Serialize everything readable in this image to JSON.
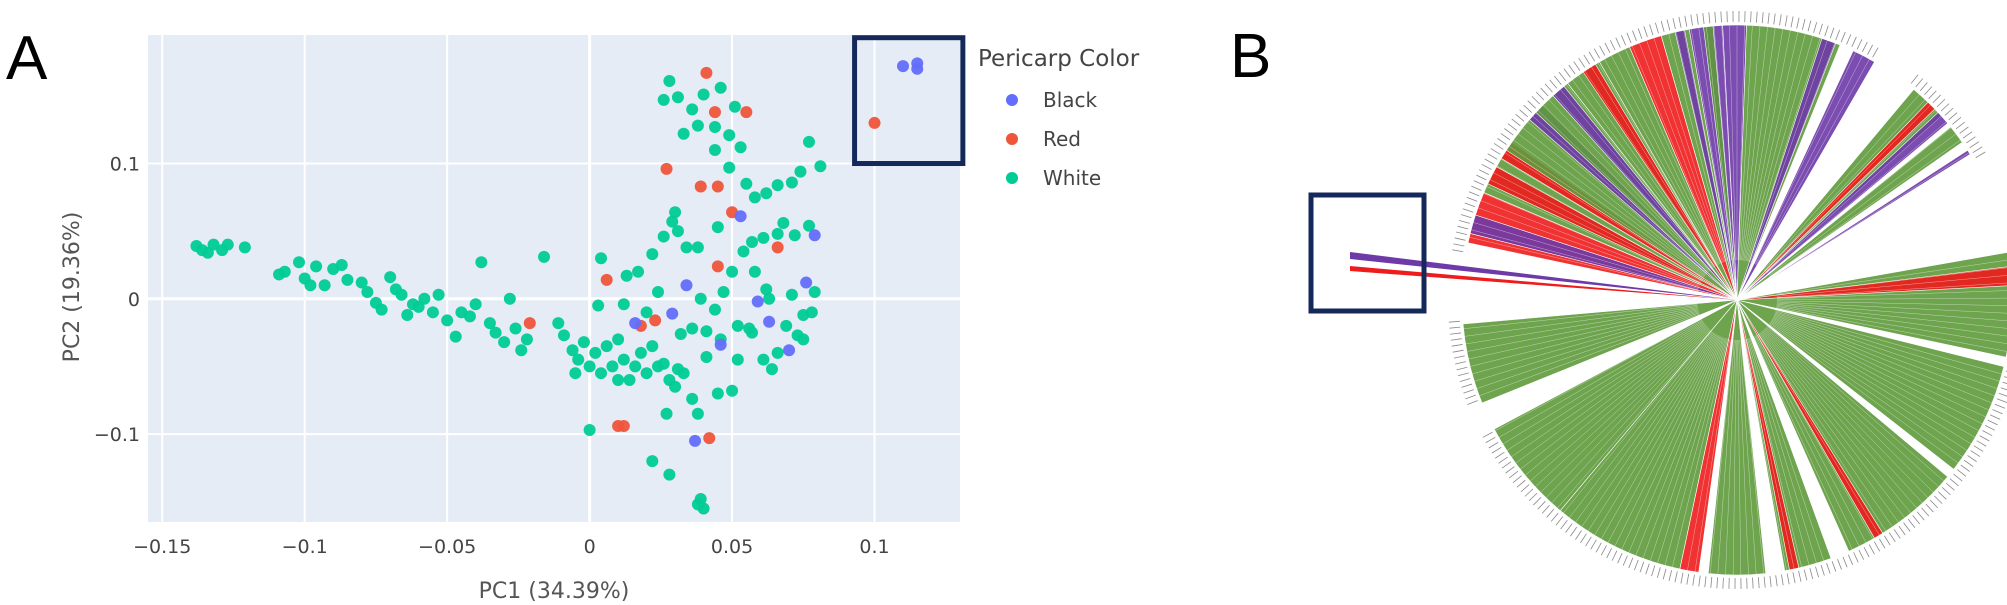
{
  "panels": {
    "a_letter": "A",
    "b_letter": "B"
  },
  "chart_data": [
    {
      "type": "scatter",
      "xlabel": "PC1 (34.39%)",
      "ylabel": "PC2 (19.36%)",
      "xlim": [
        -0.155,
        0.13
      ],
      "ylim": [
        -0.165,
        0.195
      ],
      "xticks": [
        -0.15,
        -0.1,
        -0.05,
        0,
        0.05,
        0.1
      ],
      "xtick_labels": [
        "−0.15",
        "−0.1",
        "−0.05",
        "0",
        "0.05",
        "0.1"
      ],
      "yticks": [
        -0.1,
        0,
        0.1
      ],
      "ytick_labels": [
        "−0.1",
        "0",
        "0.1"
      ],
      "grid": true,
      "legend": {
        "title": "Pericarp Color",
        "placement": "right"
      },
      "highlight_box": {
        "x": [
          0.093,
          0.131
        ],
        "y": [
          0.1,
          0.193
        ]
      },
      "series": [
        {
          "name": "Black",
          "color": "#636efa",
          "points": [
            [
              0.11,
              0.172
            ],
            [
              0.115,
              0.17
            ],
            [
              0.115,
              0.174
            ],
            [
              0.079,
              0.047
            ],
            [
              0.076,
              0.012
            ],
            [
              0.053,
              0.061
            ],
            [
              0.034,
              0.01
            ],
            [
              0.046,
              -0.034
            ],
            [
              0.029,
              -0.011
            ],
            [
              0.016,
              -0.018
            ],
            [
              0.059,
              -0.002
            ],
            [
              0.07,
              -0.038
            ],
            [
              0.063,
              -0.017
            ],
            [
              0.037,
              -0.105
            ]
          ]
        },
        {
          "name": "Red",
          "color": "#ef553b",
          "points": [
            [
              0.1,
              0.13
            ],
            [
              0.041,
              0.167
            ],
            [
              0.044,
              0.138
            ],
            [
              0.055,
              0.138
            ],
            [
              0.027,
              0.096
            ],
            [
              0.039,
              0.083
            ],
            [
              0.045,
              0.083
            ],
            [
              0.05,
              0.064
            ],
            [
              0.066,
              0.038
            ],
            [
              0.045,
              0.024
            ],
            [
              0.006,
              0.014
            ],
            [
              0.023,
              -0.016
            ],
            [
              0.018,
              -0.02
            ],
            [
              0.01,
              -0.094
            ],
            [
              0.012,
              -0.094
            ],
            [
              0.042,
              -0.103
            ],
            [
              -0.021,
              -0.018
            ]
          ]
        },
        {
          "name": "White",
          "color": "#00cc96",
          "points": [
            [
              -0.138,
              0.039
            ],
            [
              -0.136,
              0.036
            ],
            [
              -0.134,
              0.034
            ],
            [
              -0.132,
              0.04
            ],
            [
              -0.129,
              0.036
            ],
            [
              -0.127,
              0.04
            ],
            [
              -0.121,
              0.038
            ],
            [
              -0.109,
              0.018
            ],
            [
              -0.107,
              0.02
            ],
            [
              -0.102,
              0.027
            ],
            [
              -0.1,
              0.015
            ],
            [
              -0.098,
              0.01
            ],
            [
              -0.096,
              0.024
            ],
            [
              -0.093,
              0.01
            ],
            [
              -0.09,
              0.022
            ],
            [
              -0.087,
              0.025
            ],
            [
              -0.085,
              0.014
            ],
            [
              -0.08,
              0.012
            ],
            [
              -0.078,
              0.005
            ],
            [
              -0.075,
              -0.003
            ],
            [
              -0.073,
              -0.008
            ],
            [
              -0.07,
              0.016
            ],
            [
              -0.068,
              0.007
            ],
            [
              -0.066,
              0.003
            ],
            [
              -0.064,
              -0.012
            ],
            [
              -0.062,
              -0.004
            ],
            [
              -0.06,
              -0.006
            ],
            [
              -0.058,
              0.0
            ],
            [
              -0.055,
              -0.01
            ],
            [
              -0.053,
              0.003
            ],
            [
              -0.05,
              -0.016
            ],
            [
              -0.047,
              -0.028
            ],
            [
              -0.045,
              -0.01
            ],
            [
              -0.042,
              -0.013
            ],
            [
              -0.04,
              -0.004
            ],
            [
              -0.038,
              0.027
            ],
            [
              -0.035,
              -0.018
            ],
            [
              -0.033,
              -0.025
            ],
            [
              -0.03,
              -0.032
            ],
            [
              -0.028,
              0.0
            ],
            [
              -0.026,
              -0.022
            ],
            [
              -0.024,
              -0.038
            ],
            [
              -0.022,
              -0.03
            ],
            [
              -0.016,
              0.031
            ],
            [
              -0.011,
              -0.018
            ],
            [
              -0.009,
              -0.027
            ],
            [
              -0.006,
              -0.038
            ],
            [
              -0.004,
              -0.045
            ],
            [
              -0.002,
              -0.032
            ],
            [
              0.0,
              -0.05
            ],
            [
              0.002,
              -0.04
            ],
            [
              0.004,
              -0.055
            ],
            [
              0.006,
              -0.035
            ],
            [
              0.008,
              -0.05
            ],
            [
              0.01,
              -0.03
            ],
            [
              0.012,
              -0.045
            ],
            [
              0.014,
              -0.06
            ],
            [
              0.016,
              -0.05
            ],
            [
              0.018,
              -0.04
            ],
            [
              0.02,
              -0.055
            ],
            [
              0.022,
              -0.035
            ],
            [
              0.024,
              -0.05
            ],
            [
              0.026,
              -0.048
            ],
            [
              0.028,
              -0.06
            ],
            [
              0.03,
              -0.065
            ],
            [
              0.033,
              -0.055
            ],
            [
              0.036,
              -0.074
            ],
            [
              0.038,
              -0.085
            ],
            [
              0.003,
              -0.005
            ],
            [
              0.013,
              0.017
            ],
            [
              0.017,
              0.02
            ],
            [
              0.022,
              0.033
            ],
            [
              0.026,
              0.046
            ],
            [
              0.029,
              0.057
            ],
            [
              0.03,
              0.064
            ],
            [
              0.031,
              0.05
            ],
            [
              0.034,
              0.038
            ],
            [
              0.033,
              0.122
            ],
            [
              0.028,
              0.161
            ],
            [
              0.026,
              0.147
            ],
            [
              0.031,
              0.149
            ],
            [
              0.036,
              0.14
            ],
            [
              0.038,
              0.128
            ],
            [
              0.04,
              0.151
            ],
            [
              0.044,
              0.127
            ],
            [
              0.049,
              0.121
            ],
            [
              0.051,
              0.142
            ],
            [
              0.053,
              0.112
            ],
            [
              0.049,
              0.097
            ],
            [
              0.055,
              0.085
            ],
            [
              0.058,
              0.075
            ],
            [
              0.062,
              0.078
            ],
            [
              0.066,
              0.084
            ],
            [
              0.071,
              0.086
            ],
            [
              0.074,
              0.094
            ],
            [
              0.077,
              0.116
            ],
            [
              0.081,
              0.098
            ],
            [
              0.077,
              0.054
            ],
            [
              0.072,
              0.047
            ],
            [
              0.068,
              0.056
            ],
            [
              0.066,
              0.048
            ],
            [
              0.061,
              0.045
            ],
            [
              0.057,
              0.042
            ],
            [
              0.054,
              0.035
            ],
            [
              0.05,
              0.02
            ],
            [
              0.047,
              0.005
            ],
            [
              0.044,
              -0.008
            ],
            [
              0.039,
              0.0
            ],
            [
              0.041,
              -0.024
            ],
            [
              0.036,
              -0.022
            ],
            [
              0.032,
              -0.026
            ],
            [
              0.052,
              -0.045
            ],
            [
              0.05,
              -0.068
            ],
            [
              0.057,
              -0.025
            ],
            [
              0.063,
              0.0
            ],
            [
              0.066,
              -0.04
            ],
            [
              0.069,
              -0.02
            ],
            [
              0.071,
              0.003
            ],
            [
              0.073,
              -0.027
            ],
            [
              0.075,
              -0.012
            ],
            [
              0.078,
              -0.01
            ],
            [
              0.079,
              0.005
            ],
            [
              0.075,
              -0.03
            ],
            [
              0.061,
              -0.045
            ],
            [
              0.064,
              -0.052
            ],
            [
              0.056,
              -0.022
            ],
            [
              0.046,
              -0.03
            ],
            [
              0.041,
              -0.043
            ],
            [
              0.031,
              -0.052
            ],
            [
              0.027,
              -0.085
            ],
            [
              0.022,
              -0.12
            ],
            [
              0.028,
              -0.13
            ],
            [
              0.038,
              -0.152
            ],
            [
              0.04,
              -0.155
            ],
            [
              0.039,
              -0.148
            ],
            [
              0.045,
              -0.07
            ],
            [
              0.052,
              -0.02
            ],
            [
              0.058,
              0.02
            ],
            [
              0.062,
              0.007
            ],
            [
              0.0,
              -0.097
            ],
            [
              0.004,
              0.03
            ],
            [
              0.012,
              -0.004
            ],
            [
              0.02,
              -0.01
            ],
            [
              0.024,
              0.005
            ],
            [
              0.01,
              -0.06
            ],
            [
              -0.005,
              -0.055
            ],
            [
              0.045,
              0.053
            ],
            [
              0.038,
              0.038
            ],
            [
              0.044,
              0.11
            ],
            [
              0.046,
              0.156
            ]
          ]
        }
      ]
    },
    {
      "type": "tree",
      "style": "circular",
      "highlight_box": "lower-left outlier branches",
      "branch_colors": {
        "White": "#5f9a3c",
        "Red": "#ee1c1c",
        "Black": "#6e3aa7"
      },
      "tip_labels": []
    }
  ]
}
